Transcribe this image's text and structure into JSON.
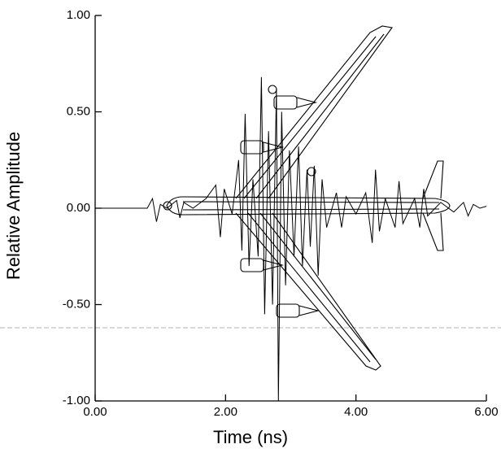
{
  "chart_data": {
    "type": "line",
    "x_label": "Time (ns)",
    "y_label": "Relative Amplitude",
    "xlim": [
      0,
      6
    ],
    "ylim": [
      -1,
      1
    ],
    "xticks": [
      {
        "value": 0,
        "label": "0.00"
      },
      {
        "value": 2,
        "label": "2.00"
      },
      {
        "value": 4,
        "label": "4.00"
      },
      {
        "value": 6,
        "label": "6.00"
      }
    ],
    "yticks": [
      {
        "value": -1,
        "label": "-1.00"
      },
      {
        "value": -0.5,
        "label": "-0.50"
      },
      {
        "value": 0,
        "label": "0.00"
      },
      {
        "value": 0.5,
        "label": "0.50"
      },
      {
        "value": 1,
        "label": "1.00"
      }
    ],
    "color": "#000000",
    "x": [
      0,
      0.8,
      0.88,
      0.94,
      1.0,
      1.1,
      1.25,
      1.3,
      1.36,
      1.5,
      1.7,
      1.85,
      1.92,
      1.98,
      2.1,
      2.2,
      2.25,
      2.3,
      2.36,
      2.42,
      2.5,
      2.55,
      2.6,
      2.66,
      2.72,
      2.78,
      2.81,
      2.86,
      2.92,
      2.98,
      3.05,
      3.12,
      3.18,
      3.25,
      3.3,
      3.36,
      3.42,
      3.48,
      3.55,
      3.7,
      3.78,
      3.85,
      4.0,
      4.15,
      4.25,
      4.3,
      4.36,
      4.45,
      4.6,
      4.66,
      4.72,
      4.9,
      4.98,
      5.04,
      5.1,
      5.3,
      5.5,
      5.65,
      5.72,
      5.8,
      5.9,
      6.0
    ],
    "values": [
      0,
      0,
      0.05,
      -0.07,
      0.02,
      0,
      0.04,
      -0.05,
      0.03,
      0,
      0.05,
      0.12,
      -0.15,
      0.1,
      -0.03,
      0.25,
      -0.22,
      0.49,
      -0.3,
      0.15,
      -0.25,
      0.68,
      -0.55,
      0.4,
      -0.5,
      0.62,
      -1.0,
      0.5,
      -0.4,
      0.3,
      -0.25,
      0.32,
      -0.3,
      0.2,
      -0.2,
      0.22,
      -0.35,
      0.15,
      -0.1,
      0.08,
      -0.1,
      0.06,
      -0.03,
      0.08,
      -0.18,
      0.2,
      -0.12,
      0.05,
      -0.1,
      0.14,
      -0.08,
      0.05,
      -0.1,
      0.1,
      -0.04,
      0.03,
      -0.02,
      0.03,
      -0.04,
      0.02,
      0,
      0.01
    ]
  }
}
